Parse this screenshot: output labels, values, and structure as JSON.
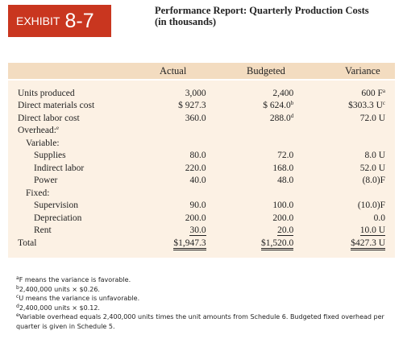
{
  "header": {
    "exhibit_label": "EXHIBIT",
    "exhibit_number": "8-7",
    "title": [
      "Performance Report: Quarterly Production Costs",
      "(in thousands)"
    ]
  },
  "table": {
    "columns": [
      "Actual",
      "Budgeted",
      "Variance"
    ],
    "rows": [
      [
        "Units produced",
        "3,000",
        "2,400",
        {
          "text": "600 F",
          "sup": "a"
        }
      ],
      [
        "Direct materials cost",
        "$ 927.3",
        {
          "text": "$ 624.0",
          "sup": "b"
        },
        {
          "text": "$303.3 U",
          "sup": "c"
        }
      ],
      [
        "Direct labor cost",
        "360.0",
        {
          "text": "288.0",
          "sup": "d"
        },
        "72.0 U"
      ],
      [
        {
          "text": "Overhead:",
          "sup": "e"
        }
      ],
      [
        "Variable:"
      ],
      [
        "Supplies",
        "80.0",
        "72.0",
        "8.0 U"
      ],
      [
        "Indirect labor",
        "220.0",
        "168.0",
        "52.0 U"
      ],
      [
        "Power",
        "40.0",
        "48.0",
        "(8.0)F"
      ],
      [
        "Fixed:"
      ],
      [
        "Supervision",
        "90.0",
        "100.0",
        "(10.0)F"
      ],
      [
        "Depreciation",
        "200.0",
        "200.0",
        "0.0"
      ],
      [
        "Rent",
        "30.0",
        "20.0",
        "10.0 U"
      ],
      [
        "Total",
        "$1,947.3",
        "$1,520.0",
        "$427.3 U"
      ]
    ]
  },
  "footnotes": [
    {
      "mark": "a",
      "text": "F means the variance is favorable."
    },
    {
      "mark": "b",
      "text": "2,400,000 units × $0.26."
    },
    {
      "mark": "c",
      "text": "U means the variance is unfavorable."
    },
    {
      "mark": "d",
      "text": "2,400,000 units × $0.12."
    },
    {
      "mark": "e",
      "text": "Variable overhead equals 2,400,000 units times the unit amounts from Schedule 6. Budgeted fixed overhead per quarter is given in Schedule 5."
    }
  ]
}
